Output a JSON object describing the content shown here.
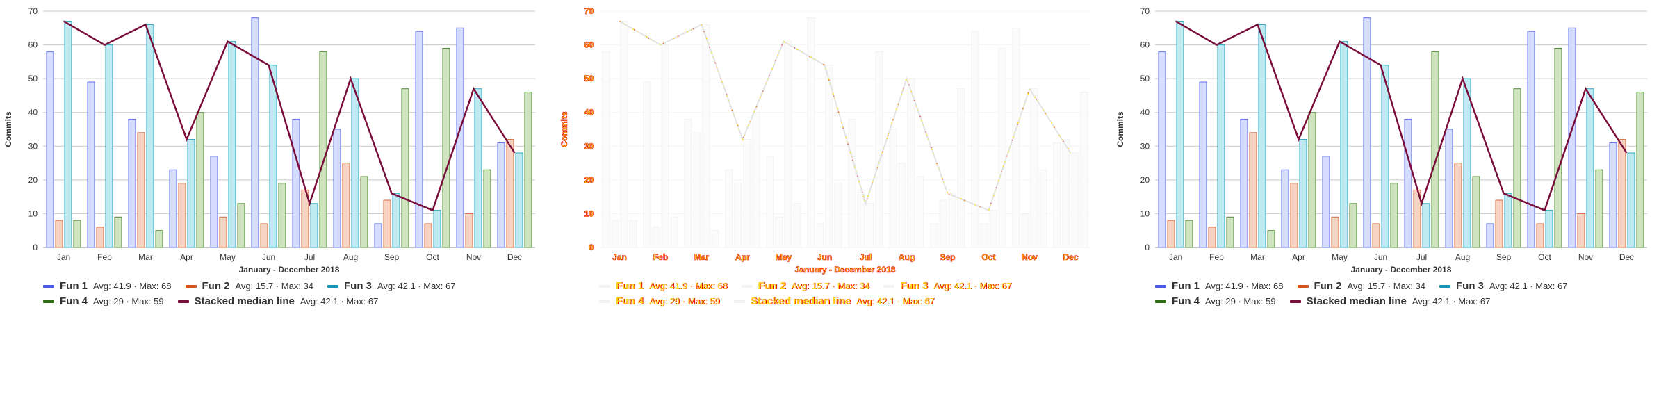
{
  "chart_data": [
    {
      "type": "bar",
      "variant": "normal",
      "xlabel": "January - December 2018",
      "ylabel": "Commits",
      "ylim": [
        0,
        70
      ],
      "yticks": [
        0,
        10,
        20,
        30,
        40,
        50,
        60,
        70
      ],
      "grid": true,
      "legend_position": "bottom-left",
      "categories": [
        "Jan",
        "Feb",
        "Mar",
        "Apr",
        "May",
        "Jun",
        "Jul",
        "Aug",
        "Sep",
        "Oct",
        "Nov",
        "Dec"
      ],
      "series": [
        {
          "name": "Fun 1",
          "kind": "bar",
          "values": [
            58,
            49,
            38,
            23,
            27,
            68,
            38,
            35,
            7,
            64,
            65,
            31
          ],
          "fill": "#d6dcff",
          "stroke": "#5f6ee6",
          "swatch": "#4d5bea",
          "stats": "Avg: 41.9 · Max: 68"
        },
        {
          "name": "Fun 2",
          "kind": "bar",
          "values": [
            8,
            6,
            34,
            19,
            9,
            7,
            17,
            25,
            14,
            7,
            10,
            32
          ],
          "fill": "#f7d3c3",
          "stroke": "#d5693f",
          "swatch": "#d5541e",
          "stats": "Avg: 15.7 · Max: 34"
        },
        {
          "name": "Fun 3",
          "kind": "bar",
          "values": [
            67,
            60,
            66,
            32,
            61,
            54,
            13,
            50,
            16,
            11,
            47,
            28
          ],
          "fill": "#bfeaf1",
          "stroke": "#2aa6bd",
          "swatch": "#1797b3",
          "stats": "Avg: 42.1 · Max: 67"
        },
        {
          "name": "Fun 4",
          "kind": "bar",
          "values": [
            8,
            9,
            5,
            40,
            13,
            19,
            58,
            21,
            47,
            59,
            23,
            46
          ],
          "fill": "#cfe3c0",
          "stroke": "#4d8a32",
          "swatch": "#2e6a12",
          "stats": "Avg: 29 · Max: 59"
        },
        {
          "name": "Stacked median line",
          "kind": "line",
          "values": [
            67,
            60,
            66,
            32,
            61,
            54,
            13,
            50,
            16,
            11,
            47,
            28
          ],
          "stroke": "#7a0d3a",
          "swatch": "#7a0d3a",
          "stats": "Avg: 42.1 · Max: 67"
        }
      ]
    },
    {
      "type": "bar",
      "variant": "ghost",
      "xlabel": "January - December 2018",
      "ylabel": "Commits",
      "ylim": [
        0,
        70
      ],
      "yticks": [
        0,
        10,
        20,
        30,
        40,
        50,
        60,
        70
      ],
      "grid": true,
      "legend_position": "bottom-left",
      "categories": [
        "Jan",
        "Feb",
        "Mar",
        "Apr",
        "May",
        "Jun",
        "Jul",
        "Aug",
        "Sep",
        "Oct",
        "Nov",
        "Dec"
      ],
      "series": [
        {
          "name": "Fun 1",
          "kind": "bar",
          "values": [
            58,
            49,
            38,
            23,
            27,
            68,
            38,
            35,
            7,
            64,
            65,
            31
          ],
          "fill": "#fbfbfb",
          "stroke": "#f0f0f0",
          "swatch": "#f2f2f2",
          "stats": "Avg: 41.9 · Max: 68"
        },
        {
          "name": "Fun 2",
          "kind": "bar",
          "values": [
            8,
            6,
            34,
            19,
            9,
            7,
            17,
            25,
            14,
            7,
            10,
            32
          ],
          "fill": "#fbfbfb",
          "stroke": "#f0f0f0",
          "swatch": "#f2f2f2",
          "stats": "Avg: 15.7 · Max: 34"
        },
        {
          "name": "Fun 3",
          "kind": "bar",
          "values": [
            67,
            60,
            66,
            32,
            61,
            54,
            13,
            50,
            16,
            11,
            47,
            28
          ],
          "fill": "#fbfbfb",
          "stroke": "#f0f0f0",
          "swatch": "#f2f2f2",
          "stats": "Avg: 42.1 · Max: 67"
        },
        {
          "name": "Fun 4",
          "kind": "bar",
          "values": [
            8,
            9,
            5,
            40,
            13,
            19,
            58,
            21,
            47,
            59,
            23,
            46
          ],
          "fill": "#fbfbfb",
          "stroke": "#f0f0f0",
          "swatch": "#f2f2f2",
          "stats": "Avg: 29 · Max: 59"
        },
        {
          "name": "Stacked median line",
          "kind": "line",
          "values": [
            67,
            60,
            66,
            32,
            61,
            54,
            13,
            50,
            16,
            11,
            47,
            28
          ],
          "stroke": "#e3e3e3",
          "swatch": "#f2f2f2",
          "stats": "Avg: 42.1 · Max: 67"
        }
      ]
    },
    {
      "type": "bar",
      "variant": "normal",
      "xlabel": "January - December 2018",
      "ylabel": "Commits",
      "ylim": [
        0,
        70
      ],
      "yticks": [
        0,
        10,
        20,
        30,
        40,
        50,
        60,
        70
      ],
      "grid": true,
      "legend_position": "bottom-left",
      "categories": [
        "Jan",
        "Feb",
        "Mar",
        "Apr",
        "May",
        "Jun",
        "Jul",
        "Aug",
        "Sep",
        "Oct",
        "Nov",
        "Dec"
      ],
      "series": [
        {
          "name": "Fun 1",
          "kind": "bar",
          "values": [
            58,
            49,
            38,
            23,
            27,
            68,
            38,
            35,
            7,
            64,
            65,
            31
          ],
          "fill": "#d6dcff",
          "stroke": "#5f6ee6",
          "swatch": "#4d5bea",
          "stats": "Avg: 41.9 · Max: 68"
        },
        {
          "name": "Fun 2",
          "kind": "bar",
          "values": [
            8,
            6,
            34,
            19,
            9,
            7,
            17,
            25,
            14,
            7,
            10,
            32
          ],
          "fill": "#f7d3c3",
          "stroke": "#d5693f",
          "swatch": "#d5541e",
          "stats": "Avg: 15.7 · Max: 34"
        },
        {
          "name": "Fun 3",
          "kind": "bar",
          "values": [
            67,
            60,
            66,
            32,
            61,
            54,
            13,
            50,
            16,
            11,
            47,
            28
          ],
          "fill": "#bfeaf1",
          "stroke": "#2aa6bd",
          "swatch": "#1797b3",
          "stats": "Avg: 42.1 · Max: 67"
        },
        {
          "name": "Fun 4",
          "kind": "bar",
          "values": [
            8,
            9,
            5,
            40,
            13,
            19,
            58,
            21,
            47,
            59,
            23,
            46
          ],
          "fill": "#cfe3c0",
          "stroke": "#4d8a32",
          "swatch": "#2e6a12",
          "stats": "Avg: 29 · Max: 59"
        },
        {
          "name": "Stacked median line",
          "kind": "line",
          "values": [
            67,
            60,
            66,
            32,
            61,
            54,
            13,
            50,
            16,
            11,
            47,
            28
          ],
          "stroke": "#7a0d3a",
          "swatch": "#7a0d3a",
          "stats": "Avg: 42.1 · Max: 67"
        }
      ]
    }
  ]
}
